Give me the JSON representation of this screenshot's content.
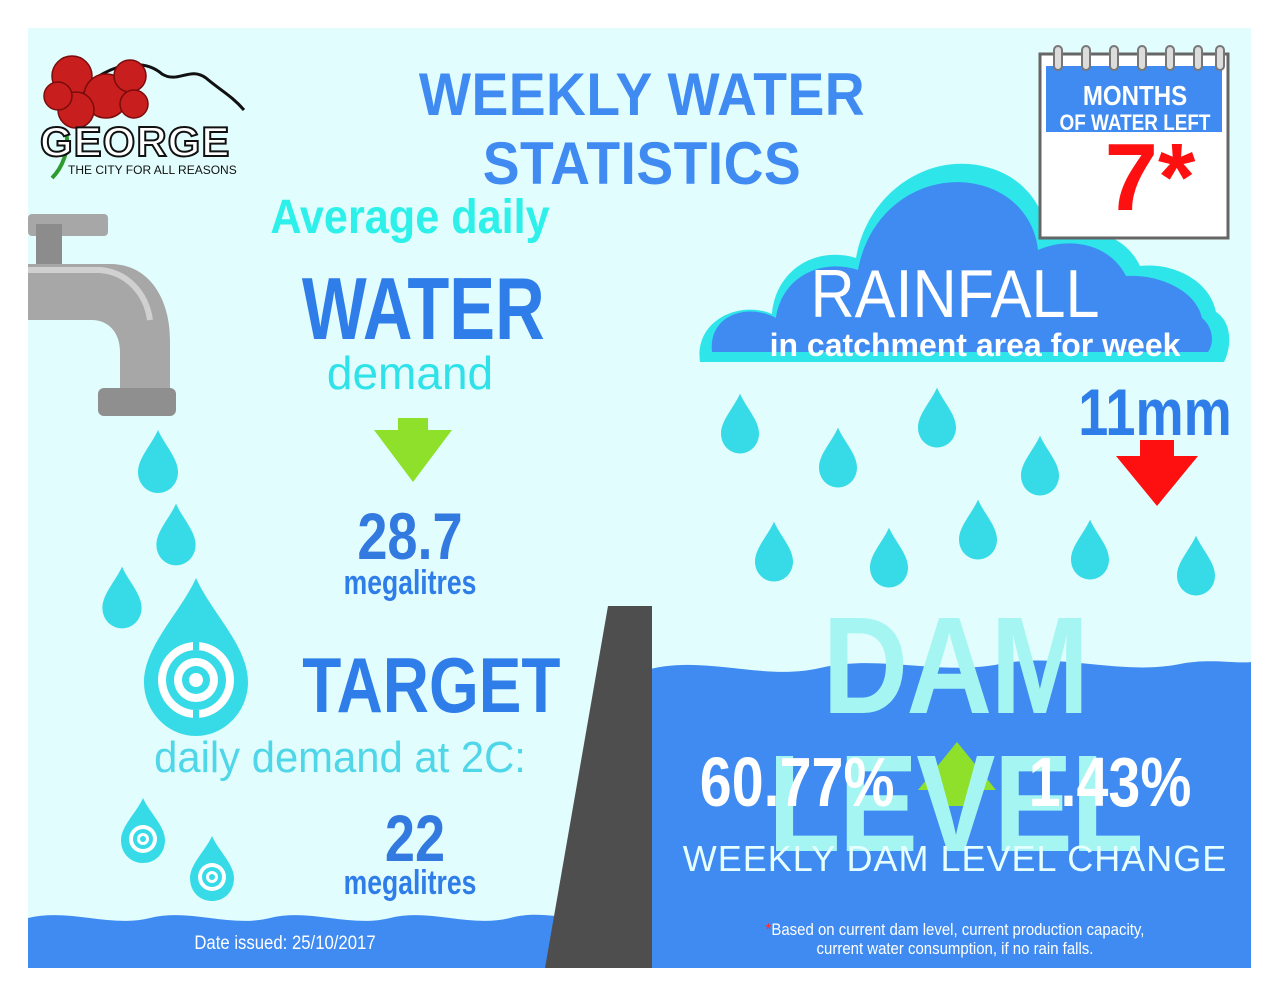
{
  "header": {
    "title": "WEEKLY WATER STATISTICS",
    "logo_name": "GEORGE",
    "logo_tagline": "THE CITY FOR ALL REASONS"
  },
  "months_left": {
    "label_line1": "MONTHS",
    "label_line2": "OF WATER LEFT",
    "value": "7*"
  },
  "demand": {
    "line1": "Average daily",
    "line2": "WATER",
    "line3": "demand",
    "value": "28.7",
    "unit": "megalitres",
    "trend": "down"
  },
  "target": {
    "title": "TARGET",
    "subtitle": "daily demand at 2C:",
    "value": "22",
    "unit": "megalitres"
  },
  "rainfall": {
    "title": "RAINFALL",
    "subtitle": "in catchment area for week",
    "value": "11mm",
    "trend": "down"
  },
  "dam": {
    "title": "DAM LEVEL",
    "level": "60.77%",
    "change": "1.43%",
    "trend": "up",
    "change_label": "WEEKLY DAM LEVEL CHANGE"
  },
  "footnote": {
    "star": "*",
    "line1": "Based on current dam level, current production capacity,",
    "line2": "current water consumption, if no rain falls."
  },
  "date_issued": "Date issued: 25/10/2017",
  "colors": {
    "background": "#e2fdfd",
    "primary_blue": "#2f7de8",
    "cyan": "#2ef0ea",
    "water_blue": "#3f8bf1",
    "arrow_green": "#8ee02a",
    "arrow_red": "#ff1010",
    "tap_grey": "#a7a7a7",
    "dam_wall": "#4e4e4e"
  }
}
